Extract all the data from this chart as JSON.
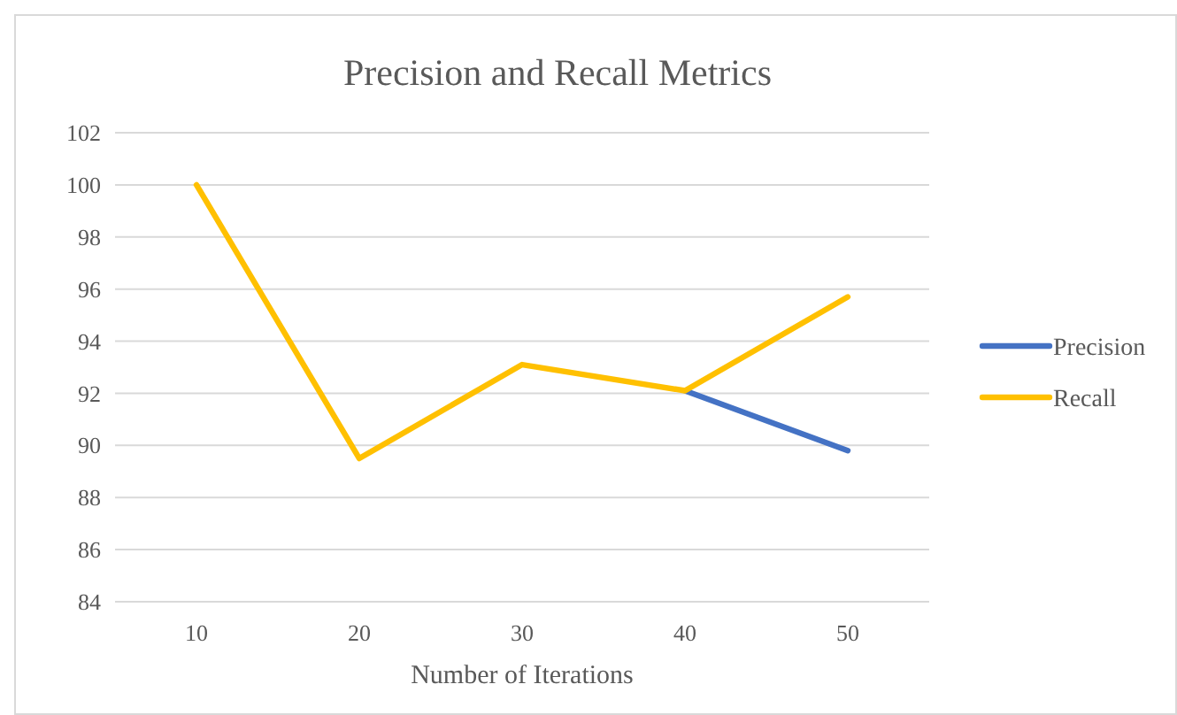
{
  "chart_data": {
    "type": "line",
    "title": "Precision and Recall Metrics",
    "xlabel": "Number of Iterations",
    "categories": [
      "10",
      "20",
      "30",
      "40",
      "50"
    ],
    "series": [
      {
        "name": "Precision",
        "color": "#4472c4",
        "values": [
          null,
          null,
          null,
          92.1,
          89.8
        ]
      },
      {
        "name": "Recall",
        "color": "#ffc000",
        "values": [
          100,
          89.5,
          93.1,
          92.1,
          95.7
        ]
      }
    ],
    "ylim": [
      84,
      102
    ],
    "yticks": [
      84,
      86,
      88,
      90,
      92,
      94,
      96,
      98,
      100,
      102
    ],
    "grid": "y",
    "legend": "right",
    "marker": "none",
    "line_style": "solid"
  }
}
